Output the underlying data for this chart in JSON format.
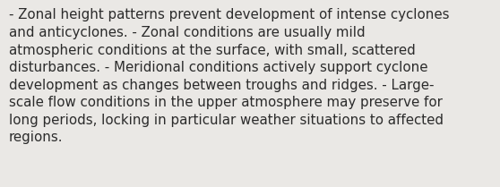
{
  "lines": [
    "- Zonal height patterns prevent development of intense cyclones",
    "and anticyclones. - Zonal conditions are usually mild",
    "atmospheric conditions at the surface, with small, scattered",
    "disturbances. - Meridional conditions actively support cyclone",
    "development as changes between troughs and ridges. - Large-",
    "scale flow conditions in the upper atmosphere may preserve for",
    "long periods, locking in particular weather situations to affected",
    "regions."
  ],
  "background_color": "#eae8e5",
  "text_color": "#2b2b2b",
  "font_size": 10.8,
  "font_family": "DejaVu Sans"
}
